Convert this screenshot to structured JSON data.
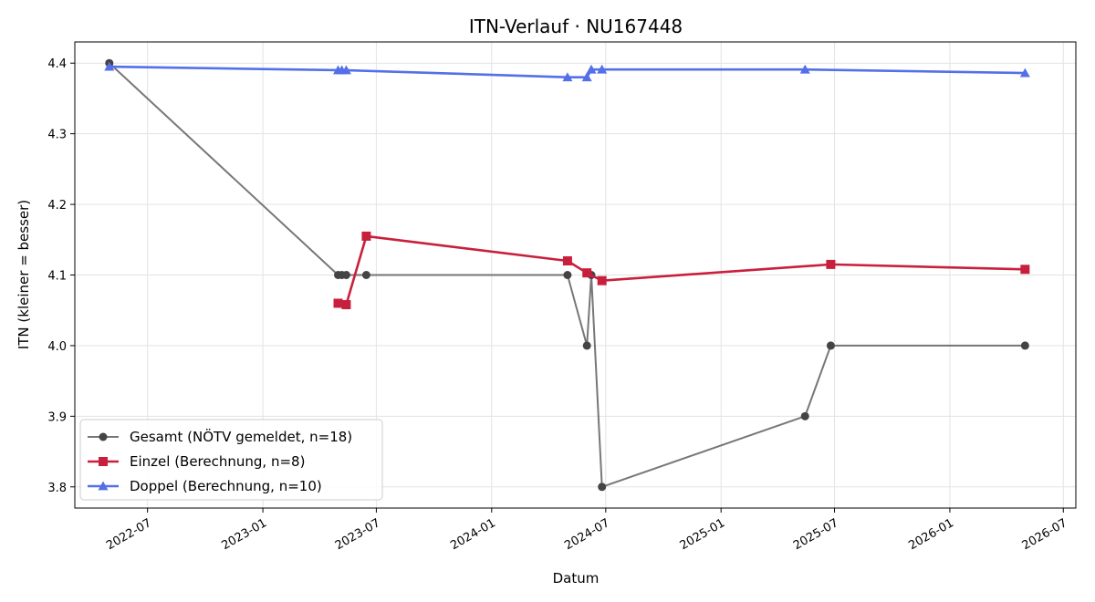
{
  "chart_data": {
    "type": "line",
    "title": "ITN-Verlauf · NU167448",
    "xlabel": "Datum",
    "ylabel": "ITN  (kleiner = besser)",
    "x_ticks": [
      "2022-07",
      "2023-01",
      "2023-07",
      "2024-01",
      "2024-07",
      "2025-01",
      "2025-07",
      "2026-01",
      "2026-07"
    ],
    "y_ticks": [
      "3.8",
      "3.9",
      "4.0",
      "4.1",
      "4.2",
      "4.3",
      "4.4"
    ],
    "xlim": [
      "2022-03-07",
      "2026-07-21"
    ],
    "ylim": [
      3.77,
      4.43
    ],
    "grid": true,
    "legend_position": "lower-left",
    "series": [
      {
        "name": "Gesamt (NÖTV gemeldet, n=18)",
        "color": "#555555",
        "marker": "circle",
        "x": [
          "2022-05-01",
          "2023-05-01",
          "2023-05-07",
          "2023-05-14",
          "2023-06-15",
          "2024-05-01",
          "2024-06-01",
          "2024-06-08",
          "2024-06-25",
          "2025-05-15",
          "2025-06-25",
          "2026-05-01"
        ],
        "values": [
          4.4,
          4.1,
          4.1,
          4.1,
          4.1,
          4.1,
          4.0,
          4.1,
          3.8,
          3.9,
          4.0,
          4.0
        ]
      },
      {
        "name": "Einzel (Berechnung, n=8)",
        "color": "#c8203c",
        "marker": "square",
        "x": [
          "2023-05-01",
          "2023-05-14",
          "2023-06-15",
          "2024-05-01",
          "2024-06-01",
          "2024-06-25",
          "2025-06-25",
          "2026-05-01"
        ],
        "values": [
          4.06,
          4.058,
          4.155,
          4.12,
          4.103,
          4.092,
          4.115,
          4.108
        ]
      },
      {
        "name": "Doppel (Berechnung, n=10)",
        "color": "#5470e8",
        "marker": "triangle",
        "x": [
          "2022-05-01",
          "2023-05-01",
          "2023-05-07",
          "2023-05-14",
          "2024-05-01",
          "2024-06-01",
          "2024-06-08",
          "2024-06-25",
          "2025-05-15",
          "2026-05-01"
        ],
        "values": [
          4.395,
          4.39,
          4.39,
          4.39,
          4.38,
          4.38,
          4.391,
          4.391,
          4.391,
          4.386
        ]
      }
    ]
  }
}
